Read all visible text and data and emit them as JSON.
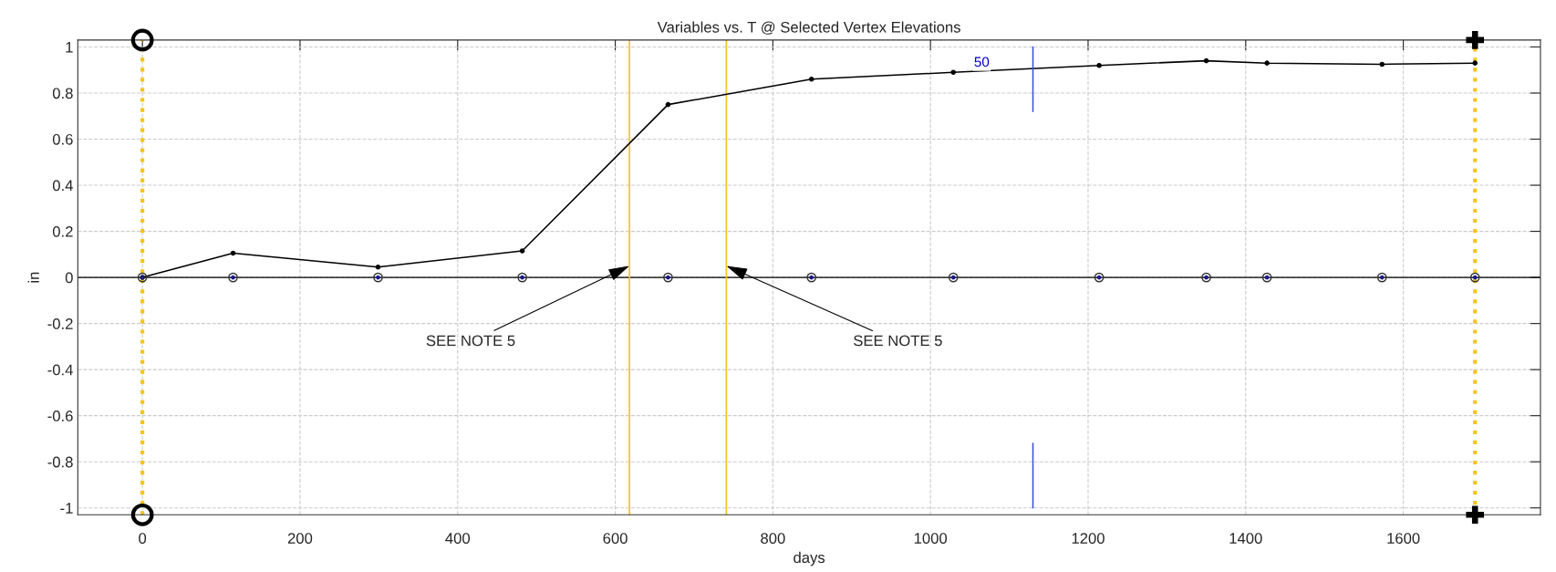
{
  "chart_data": {
    "type": "line",
    "title": "Variables vs. T @ Selected Vertex Elevations",
    "xlabel": "days",
    "ylabel": "in",
    "xlim": [
      -82,
      1774
    ],
    "ylim": [
      -1.03,
      1.03
    ],
    "xticks": [
      0,
      200,
      400,
      600,
      800,
      1000,
      1200,
      1400,
      1600
    ],
    "yticks": [
      -1,
      -0.8,
      -0.6,
      -0.4,
      -0.2,
      0,
      0.2,
      0.4,
      0.6,
      0.8,
      1
    ],
    "grid": true,
    "series": [
      {
        "color": "#000000",
        "marker": "circle",
        "x": [
          0,
          115,
          299,
          482,
          667,
          849,
          1029,
          1214,
          1350,
          1427,
          1573,
          1691
        ],
        "values": [
          0,
          0.105,
          0.045,
          0.115,
          0.75,
          0.86,
          0.89,
          0.92,
          0.94,
          0.93,
          0.925,
          0.93
        ]
      },
      {
        "type": "scatter",
        "color": "#1a1a8c",
        "marker": "circle",
        "x": [
          0,
          115,
          299,
          482,
          667,
          849,
          1029,
          1214,
          1350,
          1427,
          1573,
          1691
        ],
        "values": [
          0,
          0,
          0,
          0,
          0,
          0,
          0,
          0,
          0,
          0,
          0,
          0
        ]
      },
      {
        "color": "#3a4fd8",
        "marker": "none",
        "x": [
          1130,
          1130
        ],
        "values": [
          1.0,
          0.72
        ]
      },
      {
        "color": "#3a4fd8",
        "marker": "none",
        "x": [
          1130,
          1130
        ],
        "values": [
          -0.72,
          -1.0
        ]
      },
      {
        "type": "scatter",
        "color": "#000000",
        "marker": "circle",
        "x": [
          0,
          0
        ],
        "values": [
          1.03,
          -1.03
        ]
      },
      {
        "type": "scatter",
        "color": "#000000",
        "marker": "cross",
        "x": [
          1691,
          1691
        ],
        "values": [
          1.03,
          -1.03
        ]
      }
    ],
    "ref_lines": [
      {
        "axis": "y",
        "value": 0,
        "color": "#000000",
        "line_style": "solid"
      },
      {
        "axis": "x",
        "value": 0,
        "color": "#f5c518",
        "line_style": "dotted"
      },
      {
        "axis": "x",
        "value": 1691,
        "color": "#f5c518",
        "line_style": "dotted"
      },
      {
        "axis": "x",
        "value": 618,
        "color": "#f5c518",
        "line_style": "solid"
      },
      {
        "axis": "x",
        "value": 741,
        "color": "#f5c518",
        "line_style": "solid"
      }
    ],
    "annotations": [
      {
        "text": "SEE NOTE 5",
        "x": 618,
        "y": 0.05
      },
      {
        "text": "SEE NOTE 5",
        "x": 741,
        "y": 0.05
      },
      {
        "text": "50",
        "x": 1065,
        "y": 0.93
      }
    ]
  }
}
